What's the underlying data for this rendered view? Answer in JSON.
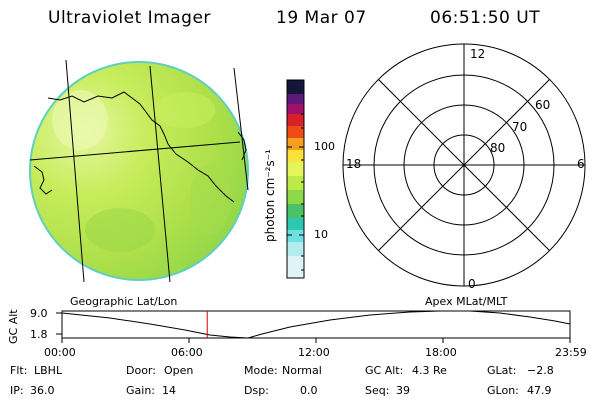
{
  "header": {
    "instrument": "Ultraviolet Imager",
    "date": "19 Mar 07",
    "time": "06:51:50 UT"
  },
  "colorbar": {
    "unit_label": "photon cm⁻²s⁻¹",
    "ticks": [
      "100",
      "10"
    ]
  },
  "polar_plot": {
    "mlt_labels": {
      "top": "12",
      "left": "18",
      "right": "6",
      "bottom": "0"
    },
    "lat_labels": [
      "60",
      "70",
      "80"
    ]
  },
  "projection_labels": {
    "left": "Geographic Lat/Lon",
    "right": "Apex MLat/MLT"
  },
  "altitude_plot": {
    "ylabel": "GC Alt",
    "yticks": [
      "9.0",
      "1.8"
    ],
    "xticks": [
      "00:00",
      "06:00",
      "12:00",
      "18:00",
      "23:59"
    ],
    "current_time_hours": 6.86,
    "current_marker_color": "#cc0000"
  },
  "info": {
    "row1": [
      {
        "label": "Flt:",
        "value": "LBHL"
      },
      {
        "label": "Door:",
        "value": "Open"
      },
      {
        "label": "Mode:",
        "value": "Normal"
      },
      {
        "label": "GC Alt:",
        "value": "4.3 Re"
      },
      {
        "label": "GLat:",
        "value": "−2.8"
      }
    ],
    "row2": [
      {
        "label": "IP:",
        "value": "36.0"
      },
      {
        "label": "Gain:",
        "value": "14"
      },
      {
        "label": "Dsp:",
        "value": "0.0"
      },
      {
        "label": "Seq:",
        "value": "39"
      },
      {
        "label": "GLon:",
        "value": "47.9"
      }
    ]
  }
}
